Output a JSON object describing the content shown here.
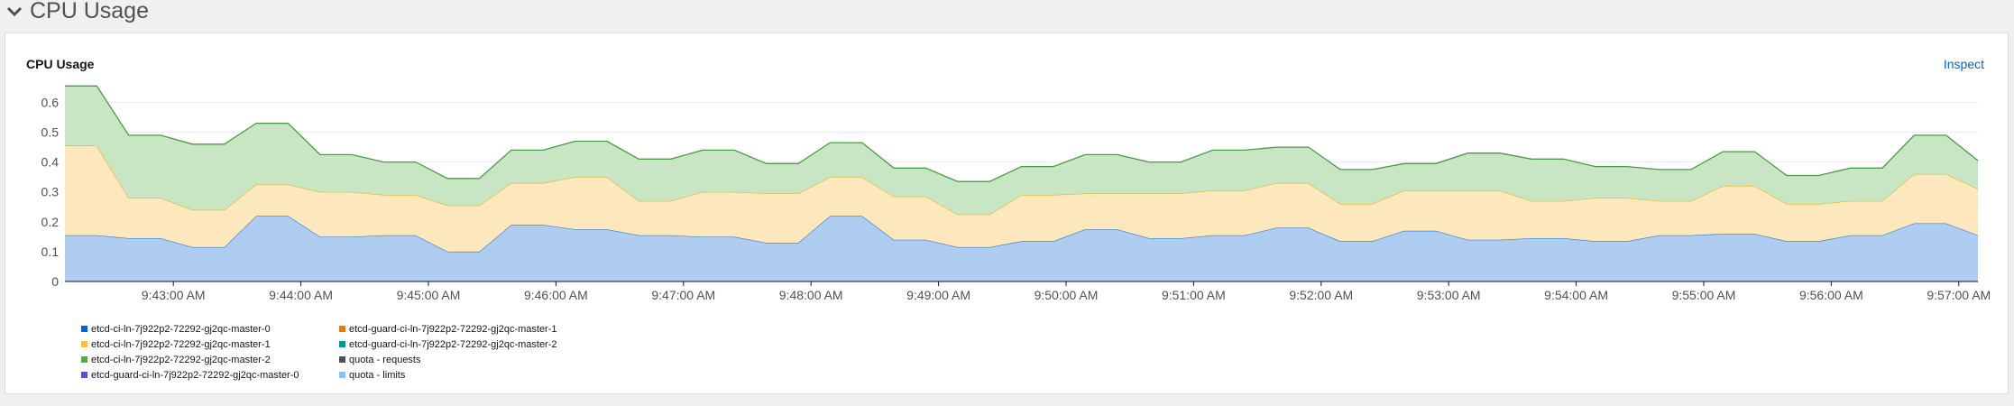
{
  "section": {
    "title": "CPU Usage",
    "chevron_icon": "chevron-down-icon"
  },
  "card": {
    "title": "CPU Usage",
    "inspect_label": "Inspect"
  },
  "chart_data": {
    "type": "area",
    "stacked": true,
    "y_ticks": [
      "0",
      "0.1",
      "0.2",
      "0.3",
      "0.4",
      "0.5",
      "0.6"
    ],
    "ylim": [
      0,
      0.68
    ],
    "x_ticks": [
      "9:43:00 AM",
      "9:44:00 AM",
      "9:45:00 AM",
      "9:46:00 AM",
      "9:47:00 AM",
      "9:48:00 AM",
      "9:49:00 AM",
      "9:50:00 AM",
      "9:51:00 AM",
      "9:52:00 AM",
      "9:53:00 AM",
      "9:54:00 AM",
      "9:55:00 AM",
      "9:56:00 AM",
      "9:57:00 AM"
    ],
    "x_tick_minutes": [
      43,
      44,
      45,
      46,
      47,
      48,
      49,
      50,
      51,
      52,
      53,
      54,
      55,
      56,
      57
    ],
    "x_minutes": [
      42.15,
      42.4,
      42.65,
      42.9,
      43.15,
      43.4,
      43.65,
      43.9,
      44.15,
      44.4,
      44.65,
      44.9,
      45.15,
      45.4,
      45.65,
      45.9,
      46.15,
      46.4,
      46.65,
      46.9,
      47.15,
      47.4,
      47.65,
      47.9,
      48.15,
      48.4,
      48.65,
      48.9,
      49.15,
      49.4,
      49.65,
      49.9,
      50.15,
      50.4,
      50.65,
      50.9,
      51.15,
      51.4,
      51.65,
      51.9,
      52.15,
      52.4,
      52.65,
      52.9,
      53.15,
      53.4,
      53.65,
      53.9,
      54.15,
      54.4,
      54.65,
      54.9,
      55.15,
      55.4,
      55.65,
      55.9,
      56.15,
      56.4,
      56.65,
      56.9,
      57.15
    ],
    "series": [
      {
        "name": "etcd-ci-ln-7j922p2-72292-gj2qc-master-0",
        "fill": "#aecdf0",
        "stroke": "#3b7fd4",
        "values": [
          0.155,
          0.155,
          0.145,
          0.145,
          0.115,
          0.115,
          0.22,
          0.22,
          0.15,
          0.15,
          0.155,
          0.155,
          0.1,
          0.1,
          0.19,
          0.19,
          0.175,
          0.175,
          0.155,
          0.155,
          0.15,
          0.15,
          0.13,
          0.13,
          0.22,
          0.22,
          0.14,
          0.14,
          0.115,
          0.115,
          0.135,
          0.135,
          0.175,
          0.175,
          0.145,
          0.145,
          0.155,
          0.155,
          0.18,
          0.18,
          0.135,
          0.135,
          0.17,
          0.17,
          0.14,
          0.14,
          0.145,
          0.145,
          0.135,
          0.135,
          0.155,
          0.155,
          0.16,
          0.16,
          0.135,
          0.135,
          0.155,
          0.155,
          0.195,
          0.195,
          0.155
        ]
      },
      {
        "name": "etcd-ci-ln-7j922p2-72292-gj2qc-master-1",
        "fill": "#fde8bd",
        "stroke": "#e2b73b",
        "values": [
          0.3,
          0.3,
          0.135,
          0.135,
          0.125,
          0.125,
          0.105,
          0.105,
          0.15,
          0.15,
          0.135,
          0.135,
          0.155,
          0.155,
          0.14,
          0.14,
          0.175,
          0.175,
          0.115,
          0.115,
          0.15,
          0.15,
          0.165,
          0.165,
          0.13,
          0.13,
          0.145,
          0.145,
          0.11,
          0.11,
          0.155,
          0.155,
          0.12,
          0.12,
          0.15,
          0.15,
          0.15,
          0.15,
          0.15,
          0.15,
          0.125,
          0.125,
          0.135,
          0.135,
          0.165,
          0.165,
          0.125,
          0.125,
          0.145,
          0.145,
          0.115,
          0.115,
          0.16,
          0.16,
          0.125,
          0.125,
          0.115,
          0.115,
          0.165,
          0.165,
          0.155
        ]
      },
      {
        "name": "etcd-ci-ln-7j922p2-72292-gj2qc-master-2",
        "fill": "#c8e5c4",
        "stroke": "#4a9b45",
        "values": [
          0.2,
          0.2,
          0.21,
          0.21,
          0.22,
          0.22,
          0.205,
          0.205,
          0.125,
          0.125,
          0.11,
          0.11,
          0.09,
          0.09,
          0.11,
          0.11,
          0.12,
          0.12,
          0.14,
          0.14,
          0.14,
          0.14,
          0.1,
          0.1,
          0.115,
          0.115,
          0.095,
          0.095,
          0.11,
          0.11,
          0.095,
          0.095,
          0.13,
          0.13,
          0.105,
          0.105,
          0.135,
          0.135,
          0.12,
          0.12,
          0.115,
          0.115,
          0.09,
          0.09,
          0.125,
          0.125,
          0.14,
          0.14,
          0.105,
          0.105,
          0.105,
          0.105,
          0.115,
          0.115,
          0.095,
          0.095,
          0.11,
          0.11,
          0.13,
          0.13,
          0.095
        ]
      }
    ],
    "legend": [
      {
        "label": "etcd-ci-ln-7j922p2-72292-gj2qc-master-0",
        "color": "#06c"
      },
      {
        "label": "etcd-ci-ln-7j922p2-72292-gj2qc-master-1",
        "color": "#f4c145"
      },
      {
        "label": "etcd-ci-ln-7j922p2-72292-gj2qc-master-2",
        "color": "#4cb140"
      },
      {
        "label": "etcd-guard-ci-ln-7j922p2-72292-gj2qc-master-0",
        "color": "#5752d1"
      },
      {
        "label": "etcd-guard-ci-ln-7j922p2-72292-gj2qc-master-1",
        "color": "#ec7a08"
      },
      {
        "label": "etcd-guard-ci-ln-7j922p2-72292-gj2qc-master-2",
        "color": "#009596"
      },
      {
        "label": "quota - requests",
        "color": "#4f5255"
      },
      {
        "label": "quota - limits",
        "color": "#8bc1f7"
      }
    ],
    "grid": true
  }
}
